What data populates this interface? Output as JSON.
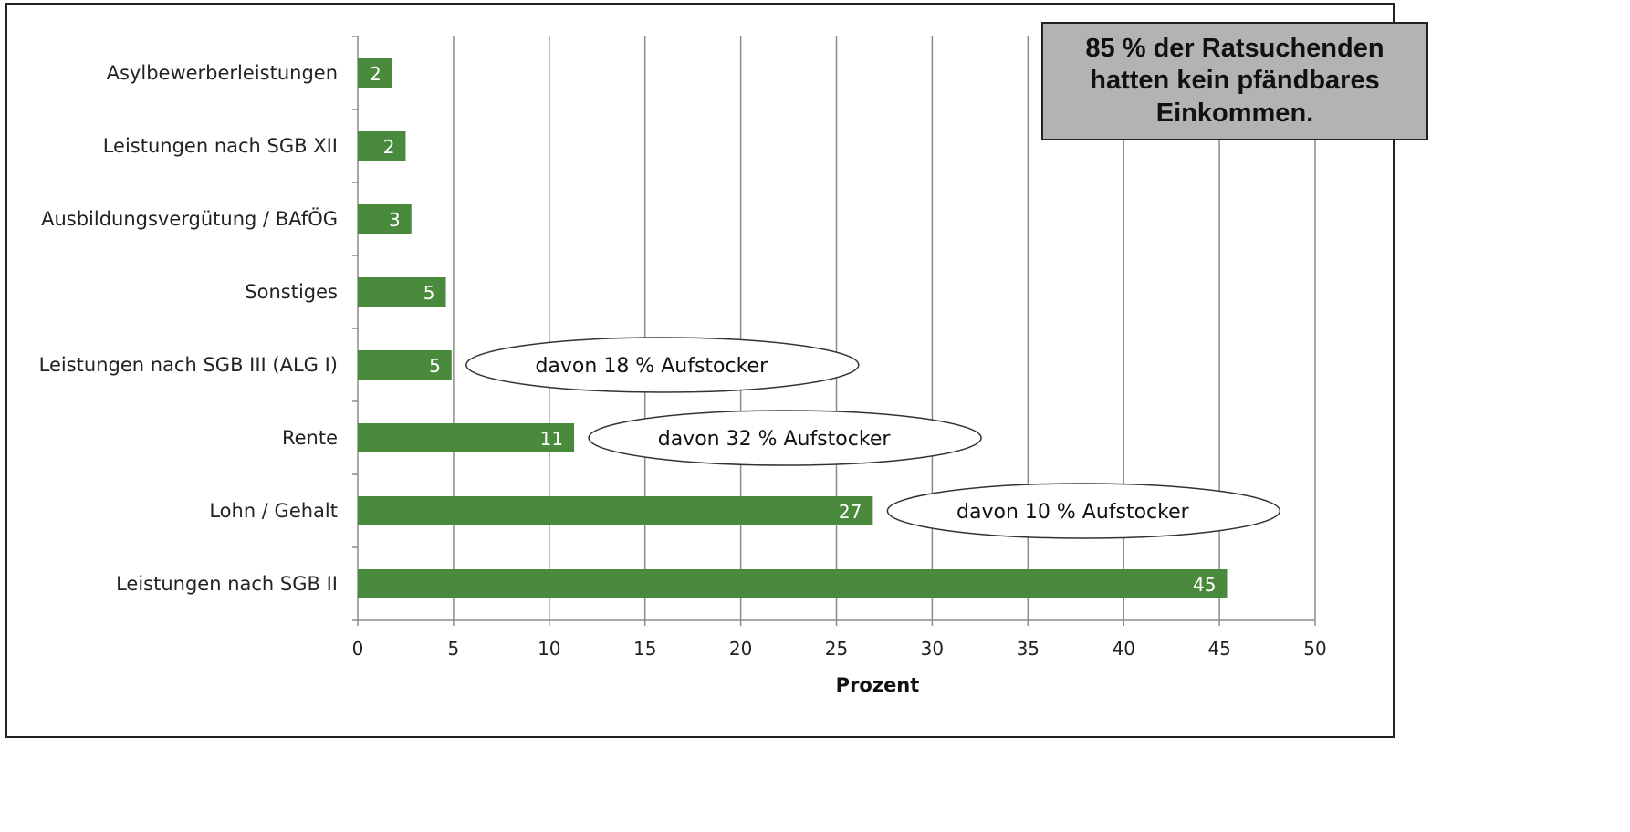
{
  "chart_data": {
    "type": "bar",
    "orientation": "horizontal",
    "categories": [
      "Asylbewerberleistungen",
      "Leistungen nach SGB XII",
      "Ausbildungsvergütung / BAfÖG",
      "Sonstiges",
      "Leistungen nach SGB III (ALG I)",
      "Rente",
      "Lohn / Gehalt",
      "Leistungen nach SGB II"
    ],
    "values": [
      1.8,
      2.5,
      2.8,
      4.6,
      4.9,
      11.3,
      26.9,
      45.4
    ],
    "data_labels": [
      "2",
      "2",
      "3",
      "5",
      "5",
      "11",
      "27",
      "45"
    ],
    "xlabel": "Prozent",
    "xlim": [
      0,
      50
    ],
    "xticks": [
      "0",
      "5",
      "10",
      "15",
      "20",
      "25",
      "30",
      "35",
      "40",
      "45",
      "50"
    ],
    "grid": "vertical",
    "bar_color": "#4a8a3c",
    "annotations": [
      {
        "category": "Leistungen nach SGB III (ALG I)",
        "text": "davon 18 % Aufstocker"
      },
      {
        "category": "Rente",
        "text": "davon 32 % Aufstocker"
      },
      {
        "category": "Lohn / Gehalt",
        "text": "davon 10 % Aufstocker"
      }
    ]
  },
  "note": {
    "text": "85 % der Ratsuchenden hatten kein pfändbares Einkommen."
  }
}
